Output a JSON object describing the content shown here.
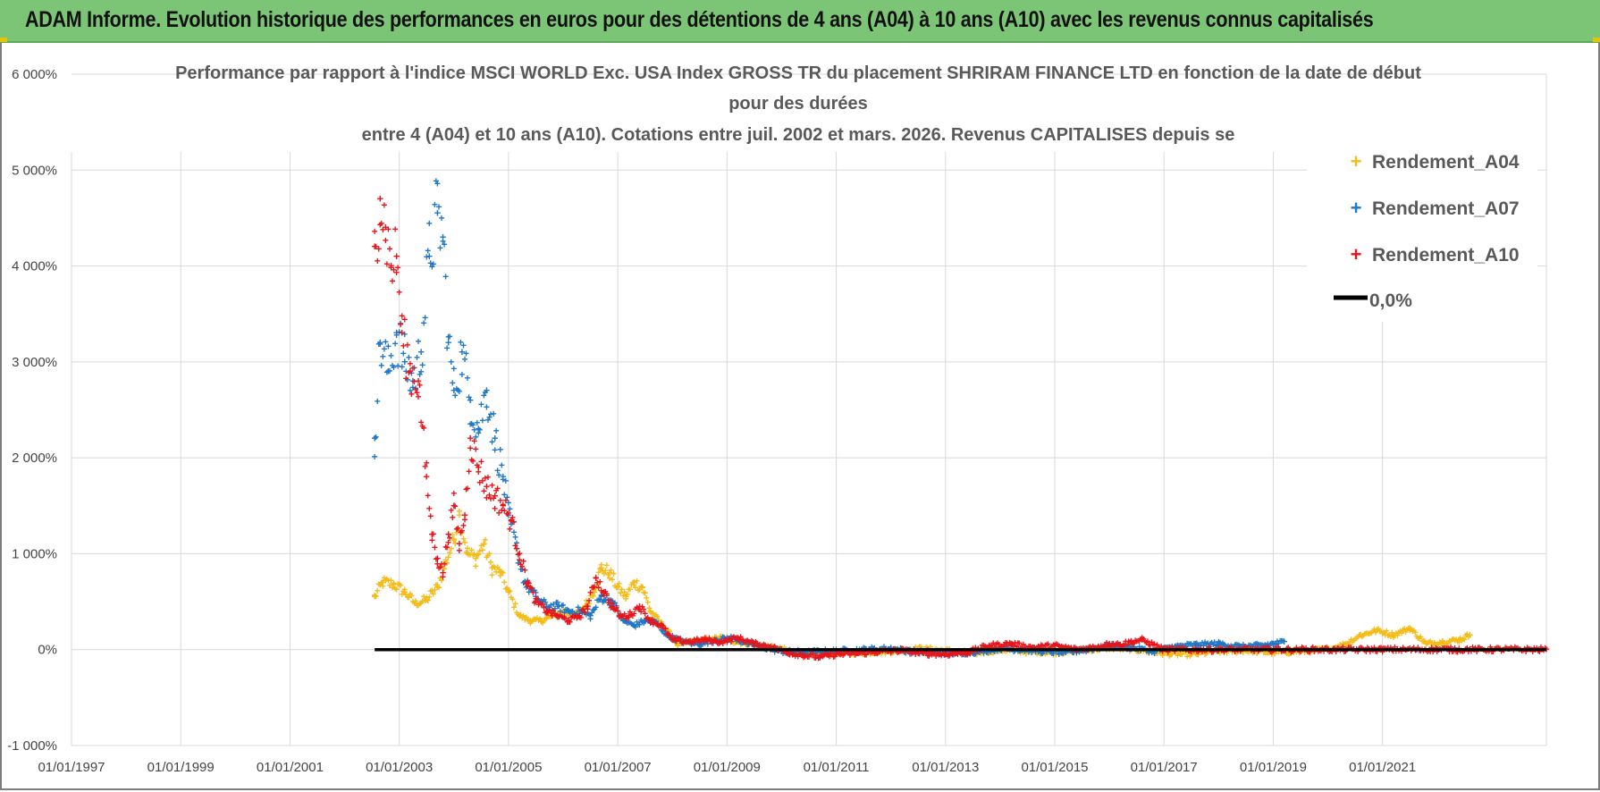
{
  "banner": {
    "title": "ADAM Informe. Evolution historique des performances en euros pour des détentions de 4 ans (A04) à 10 ans (A10) avec les revenus connus capitalisés"
  },
  "colors": {
    "A04": "#f5bb16",
    "A07": "#1f77c8",
    "A10": "#e8141a",
    "zero": "#000000",
    "grid": "#d9d9d9",
    "banner": "#7cc576"
  },
  "chart_data": {
    "type": "scatter",
    "title_lines": [
      "Performance par rapport à l'indice MSCI WORLD Exc. USA Index GROSS TR  du placement SHRIRAM FINANCE LTD en fonction de la date de début",
      "pour des durées",
      "entre 4 (A04) et 10 ans (A10). Cotations entre juil. 2002 et mars. 2026. Revenus CAPITALISES depuis se"
    ],
    "xlabel": "",
    "ylabel": "",
    "x_range": [
      1997.0,
      2024.0
    ],
    "ylim": [
      -1000,
      6000
    ],
    "x_tick_values": [
      1997,
      1999,
      2001,
      2003,
      2005,
      2007,
      2009,
      2011,
      2013,
      2015,
      2017,
      2019,
      2021
    ],
    "x_tick_labels": [
      "01/01/1997",
      "01/01/1999",
      "01/01/2001",
      "01/01/2003",
      "01/01/2005",
      "01/01/2007",
      "01/01/2009",
      "01/01/2011",
      "01/01/2013",
      "01/01/2015",
      "01/01/2017",
      "01/01/2019",
      "01/01/2021"
    ],
    "y_ticks": [
      -1000,
      0,
      1000,
      2000,
      3000,
      4000,
      5000,
      6000
    ],
    "y_tick_labels": [
      "-1 000%",
      "0%",
      "1 000%",
      "2 000%",
      "3 000%",
      "4 000%",
      "5 000%",
      "6 000%"
    ],
    "grid": true,
    "legend_position": "top-right",
    "legend": [
      "Rendement_A04",
      "Rendement_A07",
      "Rendement_A10",
      "0,0%"
    ],
    "series": [
      {
        "name": "Rendement_A04",
        "x": [
          2002.55,
          2002.7,
          2002.9,
          2003.1,
          2003.3,
          2003.5,
          2003.7,
          2003.85,
          2004.0,
          2004.1,
          2004.25,
          2004.4,
          2004.55,
          2004.7,
          2004.85,
          2005.0,
          2005.2,
          2005.4,
          2005.6,
          2005.8,
          2006.0,
          2006.2,
          2006.4,
          2006.55,
          2006.7,
          2006.85,
          2007.0,
          2007.15,
          2007.3,
          2007.45,
          2007.6,
          2007.75,
          2007.9,
          2008.1,
          2008.3,
          2008.6,
          2008.9,
          2009.2,
          2009.5,
          2009.8,
          2010.2,
          2010.6,
          2011.0,
          2011.5,
          2012.0,
          2012.5,
          2013.0,
          2013.5,
          2014.0,
          2014.5,
          2015.0,
          2015.5,
          2016.0,
          2016.5,
          2017.0,
          2017.5,
          2018.0,
          2018.5,
          2019.0,
          2019.5,
          2020.0,
          2020.3,
          2020.6,
          2020.9,
          2021.2,
          2021.5,
          2021.8,
          2022.1,
          2022.4,
          2022.6
        ],
        "y": [
          550,
          700,
          680,
          600,
          480,
          520,
          650,
          900,
          1150,
          1400,
          1000,
          950,
          1100,
          850,
          800,
          600,
          350,
          300,
          300,
          350,
          400,
          350,
          450,
          600,
          850,
          800,
          650,
          550,
          700,
          650,
          400,
          300,
          200,
          50,
          80,
          100,
          120,
          80,
          50,
          20,
          -20,
          -50,
          -40,
          -30,
          -20,
          10,
          -10,
          -40,
          0,
          -20,
          -30,
          -10,
          20,
          0,
          -40,
          -50,
          -20,
          -10,
          -30,
          -20,
          0,
          50,
          150,
          200,
          150,
          220,
          60,
          80,
          100,
          150
        ]
      },
      {
        "name": "Rendement_A07",
        "x": [
          2002.55,
          2002.65,
          2002.8,
          2002.95,
          2003.1,
          2003.25,
          2003.4,
          2003.55,
          2003.7,
          2003.8,
          2003.9,
          2004.0,
          2004.15,
          2004.3,
          2004.45,
          2004.6,
          2004.75,
          2004.9,
          2005.0,
          2005.15,
          2005.3,
          2005.5,
          2005.7,
          2005.9,
          2006.1,
          2006.3,
          2006.5,
          2006.7,
          2006.9,
          2007.1,
          2007.3,
          2007.5,
          2007.7,
          2007.9,
          2008.2,
          2008.5,
          2008.8,
          2009.1,
          2009.4,
          2009.7,
          2010.0,
          2010.4,
          2010.8,
          2011.2,
          2011.6,
          2012.0,
          2012.4,
          2012.8,
          2013.2,
          2013.6,
          2014.0,
          2014.4,
          2014.8,
          2015.2,
          2015.6,
          2016.0,
          2016.4,
          2016.8,
          2017.2,
          2017.6,
          2018.0,
          2018.4,
          2018.8,
          2019.0,
          2019.2
        ],
        "y": [
          2200,
          3200,
          2900,
          3300,
          3000,
          2800,
          3100,
          4100,
          4550,
          4300,
          3200,
          2700,
          3100,
          2600,
          2300,
          2700,
          2200,
          1800,
          1400,
          1050,
          700,
          550,
          450,
          450,
          400,
          400,
          350,
          550,
          500,
          300,
          250,
          300,
          280,
          150,
          80,
          60,
          100,
          120,
          60,
          20,
          -20,
          -30,
          -20,
          -10,
          0,
          10,
          -20,
          -30,
          -40,
          -20,
          10,
          0,
          -20,
          -30,
          0,
          40,
          20,
          -20,
          30,
          50,
          60,
          30,
          40,
          60,
          80
        ]
      },
      {
        "name": "Rendement_A10",
        "x": [
          2002.55,
          2002.65,
          2002.75,
          2002.85,
          2002.95,
          2003.05,
          2003.2,
          2003.35,
          2003.5,
          2003.6,
          2003.7,
          2003.8,
          2003.9,
          2004.0,
          2004.1,
          2004.2,
          2004.3,
          2004.45,
          2004.6,
          2004.75,
          2004.9,
          2005.05,
          2005.2,
          2005.35,
          2005.5,
          2005.7,
          2005.9,
          2006.1,
          2006.3,
          2006.45,
          2006.6,
          2006.75,
          2006.9,
          2007.05,
          2007.2,
          2007.4,
          2007.6,
          2007.8,
          2008.0,
          2008.3,
          2008.6,
          2008.9,
          2009.2,
          2009.5,
          2009.8,
          2010.1,
          2010.4,
          2010.7,
          2011.0,
          2011.4,
          2011.8,
          2012.2,
          2012.6,
          2013.0,
          2013.4,
          2013.8,
          2014.2,
          2014.6,
          2015.0,
          2015.4,
          2015.8,
          2016.0,
          2016.2,
          2016.4,
          2016.6,
          2017.0,
          2018.0,
          2019.0,
          2020.0,
          2021.0,
          2022.0,
          2023.0,
          2024.0
        ],
        "y": [
          4200,
          4700,
          4400,
          4000,
          4100,
          3300,
          2900,
          2800,
          1800,
          1200,
          950,
          800,
          1200,
          1500,
          1100,
          1400,
          2200,
          1900,
          1700,
          1600,
          1500,
          1350,
          1000,
          700,
          500,
          400,
          350,
          300,
          350,
          450,
          750,
          600,
          450,
          350,
          350,
          450,
          300,
          250,
          100,
          80,
          100,
          80,
          120,
          60,
          30,
          -30,
          -60,
          -80,
          -50,
          -40,
          -20,
          -10,
          -40,
          -50,
          -30,
          40,
          60,
          20,
          40,
          0,
          30,
          60,
          50,
          80,
          100,
          0,
          0,
          0,
          0,
          0,
          0,
          0,
          0
        ]
      },
      {
        "name": "0,0%",
        "x": [
          2002.55,
          2024.0
        ],
        "y": [
          0,
          0
        ]
      }
    ]
  }
}
